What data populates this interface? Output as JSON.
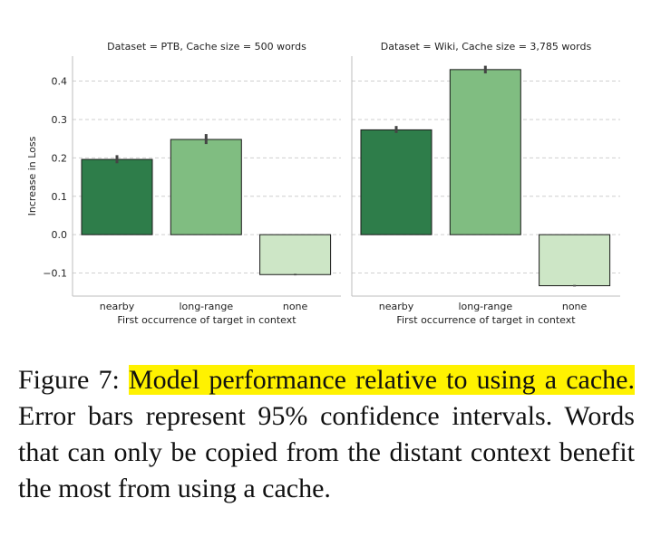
{
  "chart_data": [
    {
      "type": "bar",
      "title": "Dataset = PTB, Cache size = 500 words",
      "categories": [
        "nearby",
        "long-range",
        "none"
      ],
      "values": [
        0.196,
        0.248,
        -0.104
      ],
      "error": [
        [
          0.186,
          0.207
        ],
        [
          0.236,
          0.262
        ],
        [
          -0.106,
          -0.102
        ]
      ],
      "xlabel": "First occurrence of target in context",
      "ylabel": "Increase in Loss",
      "ylim": [
        -0.16,
        0.465
      ],
      "yticks": [
        "0.4",
        "0.3",
        "0.2",
        "0.1",
        "0.0",
        "−0.1"
      ],
      "grid": true
    },
    {
      "type": "bar",
      "title": "Dataset = Wiki, Cache size = 3,785 words",
      "categories": [
        "nearby",
        "long-range",
        "none"
      ],
      "values": [
        0.273,
        0.43,
        -0.133
      ],
      "error": [
        [
          0.265,
          0.283
        ],
        [
          0.42,
          0.44
        ],
        [
          -0.135,
          -0.131
        ]
      ],
      "xlabel": "First occurrence of target in context",
      "ylim": [
        -0.16,
        0.465
      ],
      "grid": true
    }
  ],
  "bar_colors": [
    "#2e7d4a",
    "#80bd81",
    "#cde6c6"
  ],
  "caption": {
    "label": "Figure 7:",
    "highlight": "Model performance relative to using a cache.",
    "rest": "Error bars represent 95% confidence intervals. Words that can only be copied from the distant context benefit the most from using a cache."
  }
}
